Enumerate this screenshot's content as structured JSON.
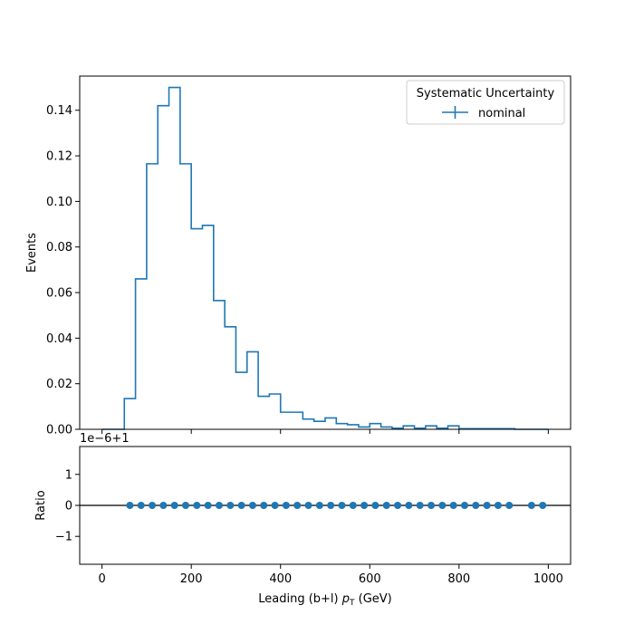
{
  "colors": {
    "series": "#1f77b4",
    "axes": "#000000",
    "background": "#ffffff"
  },
  "chart_data": [
    {
      "type": "line",
      "style": "step-histogram",
      "title": "",
      "xlabel": "",
      "ylabel": "Events",
      "xlim": [
        -50,
        1050
      ],
      "ylim": [
        0,
        0.155
      ],
      "yticks": [
        0.0,
        0.02,
        0.04,
        0.06,
        0.08,
        0.1,
        0.12,
        0.14
      ],
      "ytick_labels": [
        "0.00",
        "0.02",
        "0.04",
        "0.06",
        "0.08",
        "0.10",
        "0.12",
        "0.14"
      ],
      "xticks": [
        0,
        200,
        400,
        600,
        800,
        1000
      ],
      "grid": false,
      "legend": {
        "placement": "top-right",
        "title": "Systematic Uncertainty",
        "entries": [
          "nominal"
        ]
      },
      "bin_edges": [
        0,
        25,
        50,
        75,
        100,
        125,
        150,
        175,
        200,
        225,
        250,
        275,
        300,
        325,
        350,
        375,
        400,
        425,
        450,
        475,
        500,
        525,
        550,
        575,
        600,
        625,
        650,
        675,
        700,
        725,
        750,
        775,
        800,
        825,
        850,
        875,
        900,
        925,
        950,
        975,
        1000
      ],
      "series": [
        {
          "name": "nominal",
          "values": [
            0.0,
            0.0,
            0.0135,
            0.066,
            0.1165,
            0.142,
            0.15,
            0.1165,
            0.088,
            0.0895,
            0.0565,
            0.045,
            0.025,
            0.034,
            0.0145,
            0.0155,
            0.0075,
            0.0075,
            0.0045,
            0.0035,
            0.005,
            0.0025,
            0.002,
            0.001,
            0.0025,
            0.001,
            0.0005,
            0.0015,
            0.0005,
            0.0015,
            0.0005,
            0.0015,
            0.0003,
            0.0003,
            0.0003,
            0.0003,
            0.0003,
            0.0,
            0.0,
            0.0
          ]
        }
      ]
    },
    {
      "type": "scatter",
      "title": "",
      "xlabel": "Leading (b+l) p_T (GeV)",
      "xlabel_main": "Leading (b+l) ",
      "xlabel_italic": "p",
      "xlabel_sub": "T",
      "xlabel_unit": " (GeV)",
      "ylabel": "Ratio",
      "offset_text": "1e−6+1",
      "xlim": [
        -50,
        1050
      ],
      "ylim": [
        -1.9,
        1.9
      ],
      "yticks": [
        -1,
        0,
        1
      ],
      "ytick_labels": [
        "−1",
        "0",
        "1"
      ],
      "xticks": [
        0,
        200,
        400,
        600,
        800,
        1000
      ],
      "xtick_labels": [
        "0",
        "200",
        "400",
        "600",
        "800",
        "1000"
      ],
      "reference_line": 0,
      "grid": false,
      "x": [
        62.5,
        87.5,
        112.5,
        137.5,
        162.5,
        187.5,
        212.5,
        237.5,
        262.5,
        287.5,
        312.5,
        337.5,
        362.5,
        387.5,
        412.5,
        437.5,
        462.5,
        487.5,
        512.5,
        537.5,
        562.5,
        587.5,
        612.5,
        637.5,
        662.5,
        687.5,
        712.5,
        737.5,
        762.5,
        787.5,
        812.5,
        837.5,
        862.5,
        887.5,
        912.5,
        962.5,
        987.5
      ],
      "y": [
        0,
        0,
        0,
        0,
        0,
        0,
        0,
        0,
        0,
        0,
        0,
        0,
        0,
        0,
        0,
        0,
        0,
        0,
        0,
        0,
        0,
        0,
        0,
        0,
        0,
        0,
        0,
        0,
        0,
        0,
        0,
        0,
        0,
        0,
        0,
        0,
        0
      ]
    }
  ]
}
